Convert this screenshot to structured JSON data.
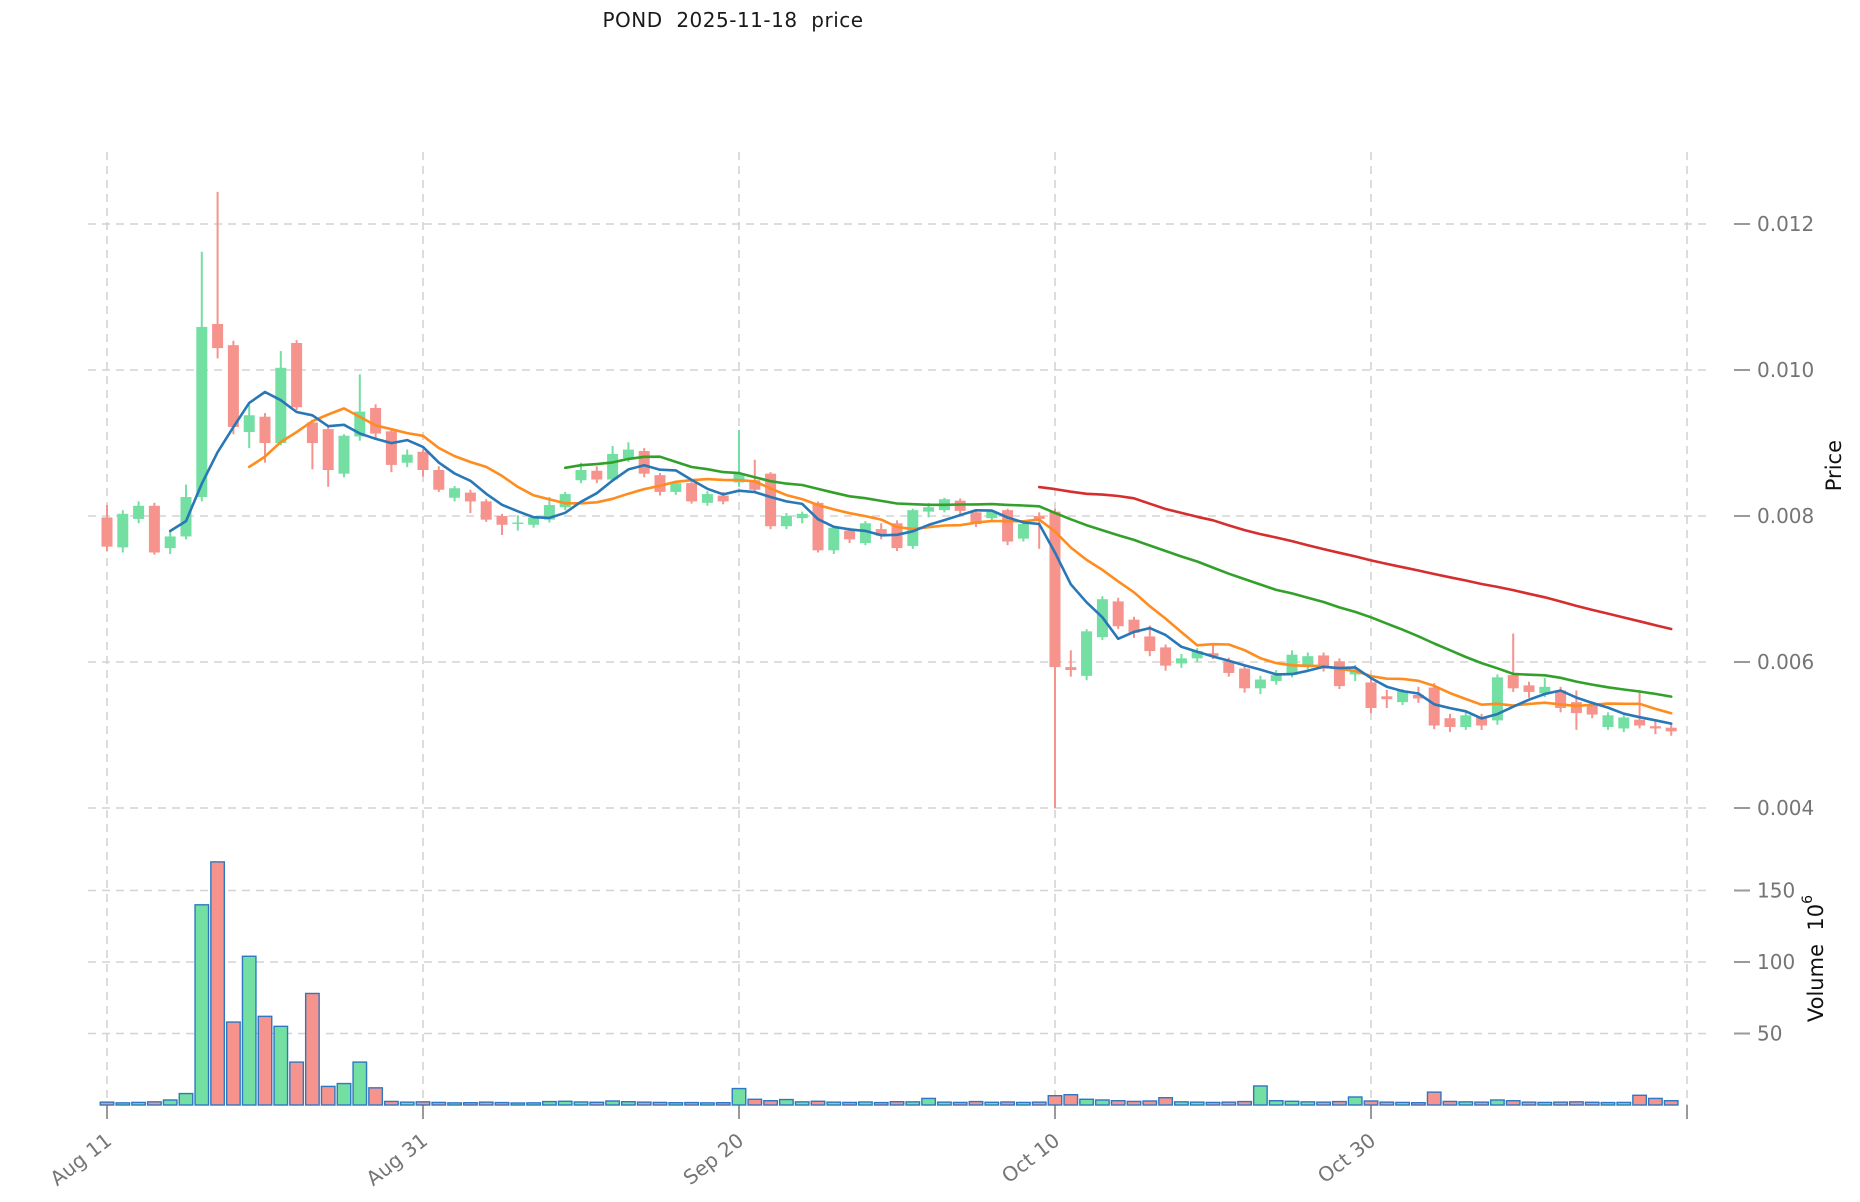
{
  "title": "POND  2025-11-18  price",
  "chart_data": {
    "type": "candlestick+volume",
    "title": "POND  2025-11-18  price",
    "price_axis": {
      "label": "Price",
      "ticks": [
        0.012,
        0.01,
        0.008,
        0.006,
        0.004
      ],
      "tick_labels": [
        "0.012",
        "0.010",
        "0.008",
        "0.006",
        "0.004"
      ]
    },
    "volume_axis": {
      "label": "Volume  10",
      "label_exponent": "6",
      "unit": "millions",
      "ticks": [
        150,
        100,
        50
      ],
      "tick_labels": [
        "150",
        "100",
        "50"
      ]
    },
    "x_axis": {
      "ticks": [
        {
          "label": "Aug 11",
          "day_index": 0
        },
        {
          "label": "Aug 31",
          "day_index": 20
        },
        {
          "label": "Sep 20",
          "day_index": 40
        },
        {
          "label": "Oct 10",
          "day_index": 60
        },
        {
          "label": "Oct 30",
          "day_index": 80
        },
        {
          "label": "",
          "day_index": 100
        }
      ]
    },
    "moving_averages": [
      {
        "name": "SMA60",
        "window": 60,
        "color": "#d62e2e"
      },
      {
        "name": "SMA30",
        "window": 30,
        "color": "#33a02c"
      },
      {
        "name": "SMA10",
        "window": 10,
        "color": "#ff8c1e"
      },
      {
        "name": "SMA5",
        "window": 5,
        "color": "#2878b8"
      }
    ],
    "colors": {
      "up": "#73dfa2",
      "down": "#f5938c",
      "volume_bar_edge": "#2e78c2",
      "grid": "#d3d3d3",
      "tick_mark": "#9a9a9a",
      "tick_text": "#757575",
      "axis_title_text": "#111111",
      "title_text": "#1a1a1a",
      "background": "#ffffff"
    },
    "candle_columns": [
      "date",
      "open",
      "high",
      "low",
      "close",
      "volume_m"
    ],
    "candles": [
      [
        "2025-08-11",
        0.00798,
        0.00815,
        0.00752,
        0.00758,
        2.0
      ],
      [
        "2025-08-12",
        0.00757,
        0.00808,
        0.0075,
        0.00803,
        1.5
      ],
      [
        "2025-08-13",
        0.00796,
        0.0082,
        0.0079,
        0.00814,
        1.8
      ],
      [
        "2025-08-14",
        0.00814,
        0.00818,
        0.00747,
        0.0075,
        2.2
      ],
      [
        "2025-08-15",
        0.00756,
        0.00778,
        0.00748,
        0.00772,
        3.5
      ],
      [
        "2025-08-16",
        0.00772,
        0.00843,
        0.00768,
        0.00826,
        8.0
      ],
      [
        "2025-08-17",
        0.00826,
        0.01162,
        0.0082,
        0.01059,
        140.0
      ],
      [
        "2025-08-18",
        0.01063,
        0.01244,
        0.01016,
        0.0103,
        170.0
      ],
      [
        "2025-08-19",
        0.01034,
        0.0104,
        0.00912,
        0.00922,
        58.0
      ],
      [
        "2025-08-20",
        0.00915,
        0.00952,
        0.00893,
        0.00938,
        104.0
      ],
      [
        "2025-08-21",
        0.00936,
        0.00941,
        0.00873,
        0.009,
        62.0
      ],
      [
        "2025-08-22",
        0.009,
        0.01026,
        0.00897,
        0.01003,
        55.0
      ],
      [
        "2025-08-23",
        0.01037,
        0.01041,
        0.00945,
        0.00949,
        30.0
      ],
      [
        "2025-08-24",
        0.00928,
        0.00932,
        0.00864,
        0.009,
        78.0
      ],
      [
        "2025-08-25",
        0.00919,
        0.00922,
        0.0084,
        0.00863,
        13.0
      ],
      [
        "2025-08-26",
        0.00858,
        0.00912,
        0.00853,
        0.0091,
        15.0
      ],
      [
        "2025-08-27",
        0.00909,
        0.00994,
        0.00903,
        0.00943,
        30.0
      ],
      [
        "2025-08-28",
        0.00948,
        0.00953,
        0.00906,
        0.00913,
        12.0
      ],
      [
        "2025-08-29",
        0.00916,
        0.00919,
        0.0086,
        0.0087,
        2.5
      ],
      [
        "2025-08-30",
        0.00873,
        0.00891,
        0.00867,
        0.00884,
        2.0
      ],
      [
        "2025-08-31",
        0.00888,
        0.00891,
        0.00854,
        0.00863,
        2.2
      ],
      [
        "2025-09-01",
        0.00863,
        0.00868,
        0.00833,
        0.00836,
        1.8
      ],
      [
        "2025-09-02",
        0.00825,
        0.00841,
        0.0082,
        0.00838,
        1.5
      ],
      [
        "2025-09-03",
        0.00832,
        0.00836,
        0.00804,
        0.0082,
        1.6
      ],
      [
        "2025-09-04",
        0.0082,
        0.00823,
        0.00792,
        0.00795,
        2.0
      ],
      [
        "2025-09-05",
        0.008,
        0.00803,
        0.00774,
        0.00788,
        1.7
      ],
      [
        "2025-09-06",
        0.0079,
        0.00801,
        0.0078,
        0.00791,
        1.4
      ],
      [
        "2025-09-07",
        0.00788,
        0.008,
        0.00784,
        0.00798,
        1.5
      ],
      [
        "2025-09-08",
        0.00795,
        0.00826,
        0.00791,
        0.00815,
        2.4
      ],
      [
        "2025-09-09",
        0.00812,
        0.00833,
        0.00808,
        0.0083,
        2.6
      ],
      [
        "2025-09-10",
        0.00849,
        0.00873,
        0.00845,
        0.00863,
        2.1
      ],
      [
        "2025-09-11",
        0.00862,
        0.00868,
        0.00845,
        0.0085,
        1.9
      ],
      [
        "2025-09-12",
        0.0085,
        0.00896,
        0.00847,
        0.00885,
        2.8
      ],
      [
        "2025-09-13",
        0.00879,
        0.00901,
        0.00874,
        0.00891,
        2.3
      ],
      [
        "2025-09-14",
        0.00889,
        0.00893,
        0.00853,
        0.00858,
        2.0
      ],
      [
        "2025-09-15",
        0.00856,
        0.00859,
        0.00828,
        0.00833,
        1.8
      ],
      [
        "2025-09-16",
        0.00833,
        0.00848,
        0.00829,
        0.00845,
        1.6
      ],
      [
        "2025-09-17",
        0.00845,
        0.00847,
        0.00817,
        0.0082,
        1.7
      ],
      [
        "2025-09-18",
        0.00818,
        0.00834,
        0.00814,
        0.0083,
        1.5
      ],
      [
        "2025-09-19",
        0.00828,
        0.00833,
        0.00816,
        0.0082,
        1.6
      ],
      [
        "2025-09-20",
        0.00846,
        0.00918,
        0.0084,
        0.00858,
        11.5
      ],
      [
        "2025-09-21",
        0.00849,
        0.00877,
        0.00832,
        0.00836,
        4.0
      ],
      [
        "2025-09-22",
        0.00858,
        0.0086,
        0.00782,
        0.00786,
        3.0
      ],
      [
        "2025-09-23",
        0.00786,
        0.00804,
        0.00782,
        0.008,
        3.8
      ],
      [
        "2025-09-24",
        0.00797,
        0.00806,
        0.0079,
        0.00803,
        2.2
      ],
      [
        "2025-09-25",
        0.00818,
        0.0082,
        0.0075,
        0.00753,
        2.6
      ],
      [
        "2025-09-26",
        0.00753,
        0.00786,
        0.00748,
        0.00784,
        2.0
      ],
      [
        "2025-09-27",
        0.0078,
        0.00784,
        0.00763,
        0.00768,
        1.8
      ],
      [
        "2025-09-28",
        0.00763,
        0.00793,
        0.0076,
        0.0079,
        2.1
      ],
      [
        "2025-09-29",
        0.00782,
        0.0079,
        0.00768,
        0.00773,
        1.7
      ],
      [
        "2025-09-30",
        0.0079,
        0.00794,
        0.00752,
        0.00756,
        2.3
      ],
      [
        "2025-10-01",
        0.00759,
        0.0081,
        0.00755,
        0.00808,
        2.2
      ],
      [
        "2025-10-02",
        0.00806,
        0.00818,
        0.00798,
        0.00812,
        4.6
      ],
      [
        "2025-10-03",
        0.00808,
        0.00825,
        0.00805,
        0.00823,
        2.0
      ],
      [
        "2025-10-04",
        0.00821,
        0.00824,
        0.008,
        0.00807,
        1.8
      ],
      [
        "2025-10-05",
        0.00805,
        0.00808,
        0.00785,
        0.00789,
        2.4
      ],
      [
        "2025-10-06",
        0.00797,
        0.00808,
        0.00793,
        0.00806,
        1.9
      ],
      [
        "2025-10-07",
        0.00808,
        0.0081,
        0.0076,
        0.00765,
        2.1
      ],
      [
        "2025-10-08",
        0.00769,
        0.00792,
        0.00765,
        0.00789,
        1.8
      ],
      [
        "2025-10-09",
        0.008,
        0.00805,
        0.00755,
        0.00796,
        2.0
      ],
      [
        "2025-10-10",
        0.00806,
        0.0081,
        0.004,
        0.00593,
        6.5
      ],
      [
        "2025-10-11",
        0.00593,
        0.00616,
        0.0058,
        0.00589,
        7.2
      ],
      [
        "2025-10-12",
        0.00581,
        0.00645,
        0.00575,
        0.00642,
        4.0
      ],
      [
        "2025-10-13",
        0.00634,
        0.0069,
        0.0063,
        0.00686,
        3.5
      ],
      [
        "2025-10-14",
        0.00683,
        0.00688,
        0.00645,
        0.00649,
        3.0
      ],
      [
        "2025-10-15",
        0.00658,
        0.00662,
        0.00633,
        0.0064,
        2.5
      ],
      [
        "2025-10-16",
        0.00635,
        0.0065,
        0.00608,
        0.00615,
        2.8
      ],
      [
        "2025-10-17",
        0.0062,
        0.00624,
        0.00588,
        0.00595,
        5.1
      ],
      [
        "2025-10-18",
        0.00598,
        0.00611,
        0.00592,
        0.00605,
        2.2
      ],
      [
        "2025-10-19",
        0.00605,
        0.00619,
        0.006,
        0.00615,
        2.0
      ],
      [
        "2025-10-20",
        0.00612,
        0.00626,
        0.00604,
        0.00608,
        1.8
      ],
      [
        "2025-10-21",
        0.00601,
        0.00606,
        0.0058,
        0.00585,
        2.0
      ],
      [
        "2025-10-22",
        0.00591,
        0.00596,
        0.00558,
        0.00564,
        2.4
      ],
      [
        "2025-10-23",
        0.00564,
        0.00581,
        0.00556,
        0.00576,
        13.3
      ],
      [
        "2025-10-24",
        0.00574,
        0.00589,
        0.00569,
        0.00582,
        3.0
      ],
      [
        "2025-10-25",
        0.00582,
        0.00616,
        0.00579,
        0.0061,
        2.6
      ],
      [
        "2025-10-26",
        0.00593,
        0.00613,
        0.0059,
        0.00608,
        2.2
      ],
      [
        "2025-10-27",
        0.00609,
        0.00613,
        0.00587,
        0.00591,
        2.0
      ],
      [
        "2025-10-28",
        0.00601,
        0.00605,
        0.00563,
        0.00567,
        2.4
      ],
      [
        "2025-10-29",
        0.00583,
        0.00596,
        0.00574,
        0.00587,
        5.6
      ],
      [
        "2025-10-30",
        0.00572,
        0.00577,
        0.0053,
        0.00537,
        2.8
      ],
      [
        "2025-10-31",
        0.00553,
        0.00562,
        0.00537,
        0.00549,
        2.0
      ],
      [
        "2025-11-01",
        0.00545,
        0.00563,
        0.00541,
        0.00561,
        1.8
      ],
      [
        "2025-11-02",
        0.00555,
        0.00566,
        0.00544,
        0.0055,
        1.6
      ],
      [
        "2025-11-03",
        0.00565,
        0.00571,
        0.00508,
        0.00513,
        9.0
      ],
      [
        "2025-11-04",
        0.00523,
        0.00529,
        0.00504,
        0.00511,
        2.5
      ],
      [
        "2025-11-05",
        0.00511,
        0.00531,
        0.00507,
        0.00527,
        2.2
      ],
      [
        "2025-11-06",
        0.00525,
        0.00529,
        0.00507,
        0.00513,
        2.0
      ],
      [
        "2025-11-07",
        0.0052,
        0.00583,
        0.00514,
        0.00579,
        3.5
      ],
      [
        "2025-11-08",
        0.00582,
        0.00639,
        0.00559,
        0.00564,
        3.0
      ],
      [
        "2025-11-09",
        0.00568,
        0.00573,
        0.00551,
        0.00559,
        2.0
      ],
      [
        "2025-11-10",
        0.00557,
        0.00578,
        0.00552,
        0.00566,
        1.8
      ],
      [
        "2025-11-11",
        0.00561,
        0.00566,
        0.00531,
        0.00537,
        2.0
      ],
      [
        "2025-11-12",
        0.00545,
        0.00561,
        0.00507,
        0.0053,
        2.2
      ],
      [
        "2025-11-13",
        0.00542,
        0.00546,
        0.00523,
        0.00528,
        1.9
      ],
      [
        "2025-11-14",
        0.00511,
        0.00531,
        0.00507,
        0.00527,
        1.7
      ],
      [
        "2025-11-15",
        0.00509,
        0.00527,
        0.00504,
        0.00524,
        1.8
      ],
      [
        "2025-11-16",
        0.00521,
        0.00558,
        0.00509,
        0.00513,
        6.8
      ],
      [
        "2025-11-17",
        0.00512,
        0.00519,
        0.00501,
        0.00509,
        4.6
      ],
      [
        "2025-11-18",
        0.0051,
        0.00516,
        0.00499,
        0.00505,
        3.0
      ]
    ],
    "layout": {
      "grid": "dashed",
      "legend": "none",
      "price_ylim_gridlines": [
        0.004,
        0.012
      ],
      "volume_baseline": 0
    }
  }
}
